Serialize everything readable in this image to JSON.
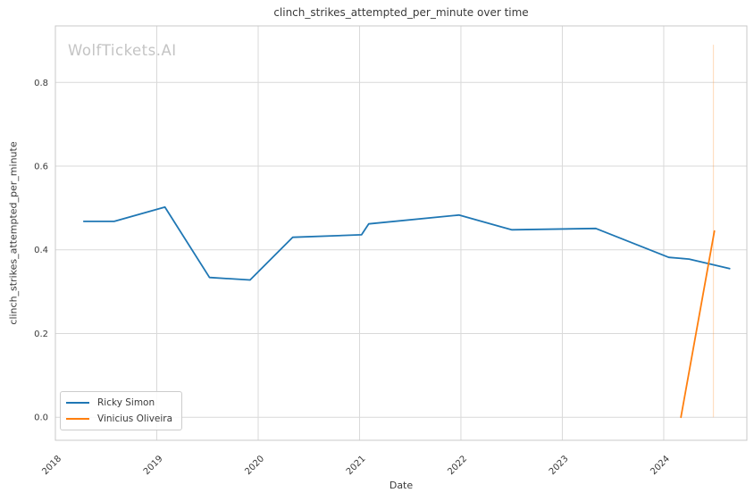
{
  "watermark": "WolfTickets.AI",
  "colors": {
    "background": "#ffffff",
    "grid": "#d9d9d9",
    "spine": "#c9c9c9",
    "text": "#3a3a3a",
    "watermark": "#c4c4c4"
  },
  "chart_data": {
    "type": "line",
    "title": "clinch_strikes_attempted_per_minute over time",
    "xlabel": "Date",
    "ylabel": "clinch_strikes_attempted_per_minute",
    "xlim": [
      2018.0,
      2024.82
    ],
    "ylim": [
      -0.055,
      0.935
    ],
    "x_ticks": [
      2018,
      2019,
      2020,
      2021,
      2022,
      2023,
      2024
    ],
    "x_tick_labels": [
      "2018",
      "2019",
      "2020",
      "2021",
      "2022",
      "2023",
      "2024"
    ],
    "y_ticks": [
      0.0,
      0.2,
      0.4,
      0.6,
      0.8
    ],
    "y_tick_labels": [
      "0.0",
      "0.2",
      "0.4",
      "0.6",
      "0.8"
    ],
    "grid": true,
    "legend_position": "lower-left",
    "series": [
      {
        "name": "Ricky Simon",
        "color": "#1f77b4",
        "x": [
          2018.28,
          2018.58,
          2019.08,
          2019.52,
          2019.92,
          2020.34,
          2021.02,
          2021.09,
          2021.98,
          2022.5,
          2023.33,
          2024.05,
          2024.25,
          2024.65
        ],
        "y": [
          0.468,
          0.468,
          0.502,
          0.334,
          0.328,
          0.43,
          0.436,
          0.462,
          0.483,
          0.448,
          0.451,
          0.382,
          0.378,
          0.355
        ]
      },
      {
        "name": "Vinicius Oliveira",
        "color": "#ff7f0e",
        "x": [
          2024.17,
          2024.5
        ],
        "y": [
          0.0,
          0.445
        ]
      }
    ],
    "event_marker": {
      "x": 2024.49,
      "y_from": 0.0,
      "y_to": 0.89,
      "color": "#ff7f0e",
      "opacity": 0.25
    }
  }
}
